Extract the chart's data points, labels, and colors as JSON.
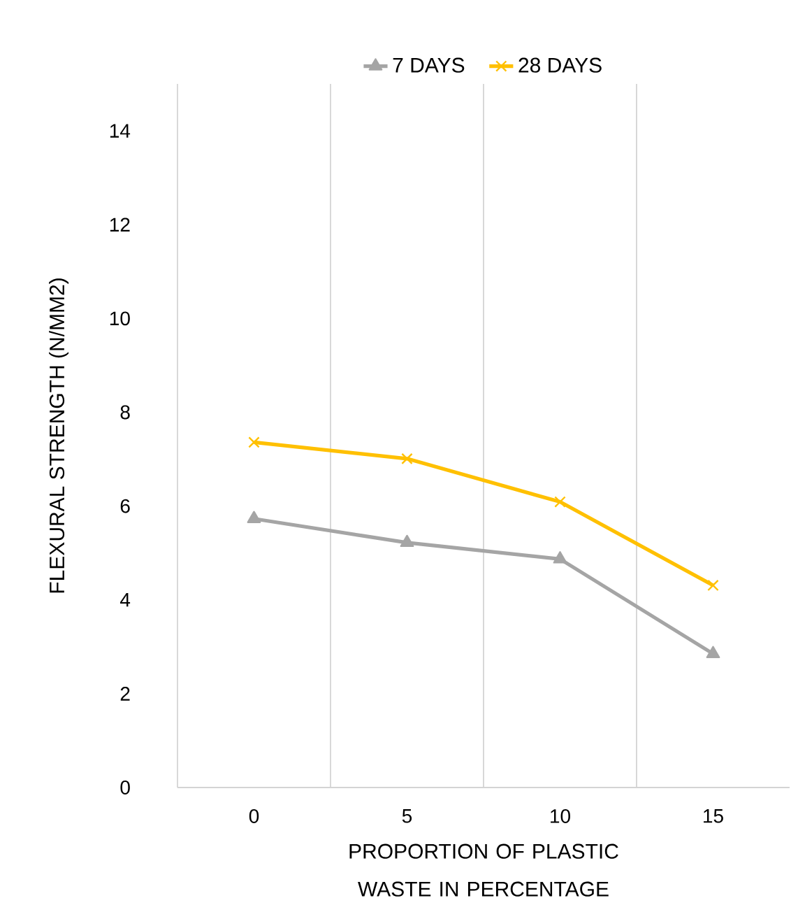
{
  "chart_data": {
    "type": "line",
    "xlabel": "PROPORTION OF PLASTIC WASTE IN PERCENTAGE",
    "ylabel": "FLEXURAL STRENGTH (N/MM2)",
    "categories": [
      "0",
      "5",
      "10",
      "15"
    ],
    "series": [
      {
        "name": "7 DAYS",
        "color": "#a5a5a5",
        "marker": "triangle",
        "values": [
          5.73,
          5.22,
          4.87,
          2.85
        ]
      },
      {
        "name": "28 DAYS",
        "color": "#ffc000",
        "marker": "cross",
        "values": [
          7.36,
          7.01,
          6.09,
          4.31
        ]
      }
    ],
    "ylim": [
      0,
      15
    ],
    "yticks": [
      0,
      2,
      4,
      6,
      8,
      10,
      12,
      14
    ],
    "grid": "x",
    "legend": "top",
    "line_style": "solid"
  }
}
